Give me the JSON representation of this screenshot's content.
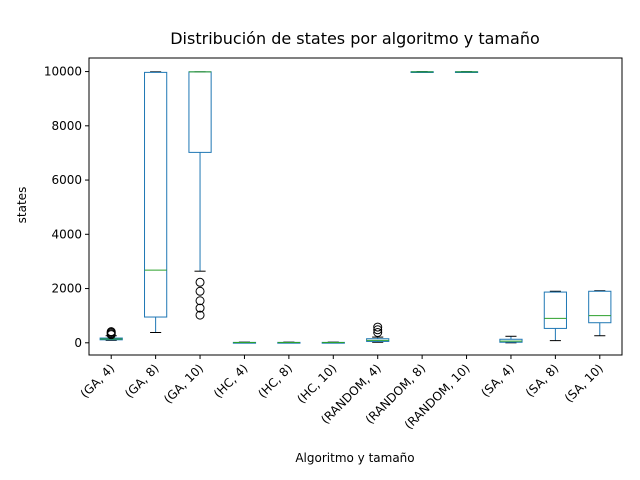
{
  "chart_data": {
    "type": "box",
    "title": "Distribución de states por algoritmo y tamaño",
    "xlabel": "Algoritmo y tamaño",
    "ylabel": "states",
    "ylim": [
      -450,
      10500
    ],
    "yticks": [
      0,
      2000,
      4000,
      6000,
      8000,
      10000
    ],
    "grid": false,
    "colors": {
      "box": "#1f77b4",
      "median": "#2ca02c",
      "whisker": "#1f77b4",
      "cap": "#000000",
      "flier": "#000000"
    },
    "categories": [
      "(GA, 4)",
      "(GA, 8)",
      "(GA, 10)",
      "(HC, 4)",
      "(HC, 8)",
      "(HC, 10)",
      "(RANDOM, 4)",
      "(RANDOM, 8)",
      "(RANDOM, 10)",
      "(SA, 4)",
      "(SA, 8)",
      "(SA, 10)"
    ],
    "boxes": [
      {
        "whislo": 90,
        "q1": 110,
        "med": 140,
        "q3": 175,
        "whishi": 260,
        "fliers": [
          300,
          340,
          380,
          410
        ]
      },
      {
        "whislo": 380,
        "q1": 950,
        "med": 2680,
        "q3": 9970,
        "whishi": 9990,
        "fliers": []
      },
      {
        "whislo": 2640,
        "q1": 7020,
        "med": 9990,
        "q3": 9990,
        "whishi": 9990,
        "fliers": [
          1020,
          1280,
          1550,
          1900,
          2230
        ]
      },
      {
        "whislo": 0,
        "q1": 5,
        "med": 10,
        "q3": 15,
        "whishi": 25,
        "fliers": []
      },
      {
        "whislo": 0,
        "q1": 5,
        "med": 10,
        "q3": 15,
        "whishi": 25,
        "fliers": []
      },
      {
        "whislo": 0,
        "q1": 5,
        "med": 10,
        "q3": 15,
        "whishi": 25,
        "fliers": []
      },
      {
        "whislo": 20,
        "q1": 50,
        "med": 90,
        "q3": 150,
        "whishi": 210,
        "fliers": [
          380,
          480,
          580
        ]
      },
      {
        "whislo": 9980,
        "q1": 9985,
        "med": 9990,
        "q3": 9995,
        "whishi": 10000,
        "fliers": []
      },
      {
        "whislo": 9980,
        "q1": 9985,
        "med": 9990,
        "q3": 9995,
        "whishi": 10000,
        "fliers": []
      },
      {
        "whislo": 0,
        "q1": 20,
        "med": 60,
        "q3": 130,
        "whishi": 240,
        "fliers": []
      },
      {
        "whislo": 80,
        "q1": 530,
        "med": 900,
        "q3": 1870,
        "whishi": 1900,
        "fliers": []
      },
      {
        "whislo": 260,
        "q1": 740,
        "med": 1000,
        "q3": 1900,
        "whishi": 1920,
        "fliers": []
      }
    ]
  }
}
